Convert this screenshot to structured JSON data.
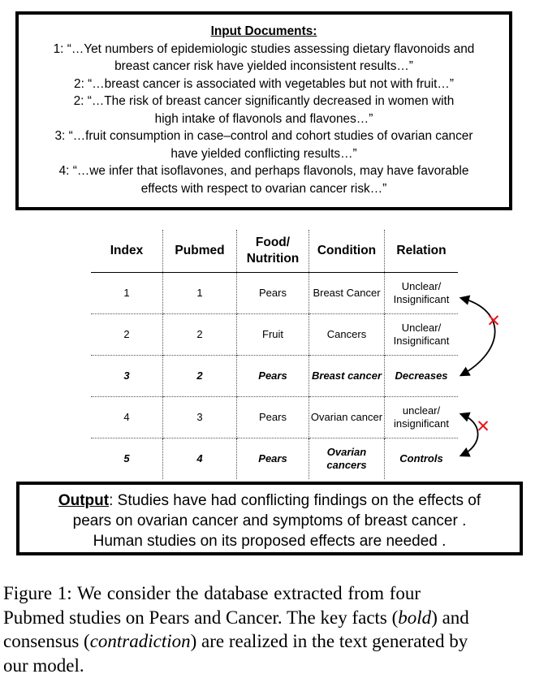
{
  "input_documents": {
    "title": "Input Documents:",
    "lines": [
      "1: “…Yet numbers of epidemiologic studies assessing dietary flavonoids and",
      "breast cancer risk have yielded inconsistent results…”",
      "2: “…breast cancer is associated with vegetables but not with fruit…”",
      "2: “…The risk of breast cancer significantly decreased in women with",
      "high intake of flavonols and flavones…”",
      "3: “…fruit consumption in case–control and cohort studies of ovarian cancer",
      "have yielded conflicting results…”",
      "4: “…we infer that isoflavones, and perhaps flavonols, may have favorable",
      "effects with respect to ovarian cancer risk…”",
      "…"
    ]
  },
  "table": {
    "headers": [
      "Index",
      "Pubmed",
      "Food/ Nutrition",
      "Condition",
      "Relation"
    ],
    "rows": [
      {
        "index": "1",
        "pubmed": "1",
        "food": "Pears",
        "condition": "Breast Cancer",
        "relation": "Unclear/ Insignificant"
      },
      {
        "index": "2",
        "pubmed": "2",
        "food": "Fruit",
        "condition": "Cancers",
        "relation": "Unclear/ Insignificant"
      },
      {
        "index": "3",
        "pubmed": "2",
        "food": "Pears",
        "condition": "Breast cancer",
        "relation": "Decreases"
      },
      {
        "index": "4",
        "pubmed": "3",
        "food": "Pears",
        "condition": "Ovarian cancer",
        "relation": "unclear/ insignificant"
      },
      {
        "index": "5",
        "pubmed": "4",
        "food": "Pears",
        "condition": "Ovarian cancers",
        "relation": "Controls"
      }
    ],
    "contradiction_mark": "✕",
    "mark_color": "#e8151b"
  },
  "output": {
    "label": "Output",
    "line1": ": Studies have had conflicting findings on the effects of",
    "line2": "pears on ovarian cancer and symptoms of breast cancer .",
    "line3": "Human studies on its proposed effects are needed ."
  },
  "caption": {
    "l1_a": "Figure 1:  We consider the database extracted from four",
    "l2": "Pubmed studies on Pears and Cancer. The key facts (",
    "l2_em": "bold",
    "l2_b": ") and",
    "l3_a": "consensus (",
    "l3_em": "contradiction",
    "l3_b": ") are realized in the text generated by",
    "l4": "our model."
  }
}
